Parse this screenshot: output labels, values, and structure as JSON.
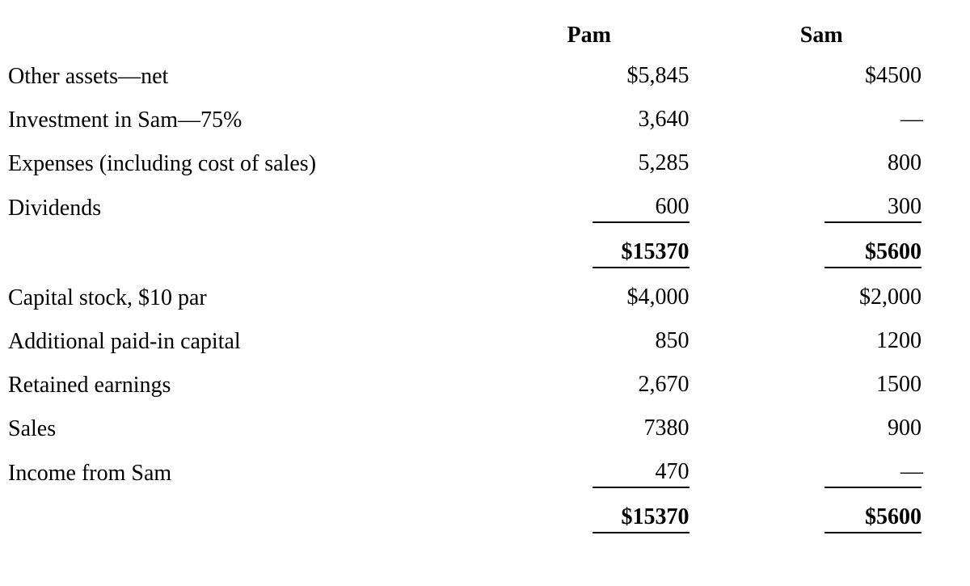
{
  "table": {
    "type": "table",
    "background_color": "#ffffff",
    "text_color": "#000000",
    "font_family": "Times New Roman",
    "font_size_pt": 21,
    "columns": [
      {
        "label": "",
        "align": "left"
      },
      {
        "label": "Pam",
        "align": "right"
      },
      {
        "label": "Sam",
        "align": "right"
      }
    ],
    "dash_glyph": "—",
    "section1": {
      "rows": [
        {
          "label": "Other assets—net",
          "pam": "$5,845",
          "sam": "$4500"
        },
        {
          "label": "Investment in Sam—75%",
          "pam": "3,640",
          "sam": "—"
        },
        {
          "label": "Expenses (including cost of sales)",
          "pam": "5,285",
          "sam": "800"
        },
        {
          "label": "Dividends",
          "pam": "600",
          "sam": "300",
          "underline": true
        }
      ],
      "total": {
        "pam": "$15370",
        "sam": "$5600",
        "bold": true,
        "underline": true
      }
    },
    "section2": {
      "rows": [
        {
          "label": "Capital stock, $10 par",
          "pam": "$4,000",
          "sam": "$2,000"
        },
        {
          "label": "Additional paid-in capital",
          "pam": "850",
          "sam": "1200"
        },
        {
          "label": "Retained earnings",
          "pam": "2,670",
          "sam": "1500"
        },
        {
          "label": "Sales",
          "pam": "7380",
          "sam": "900"
        },
        {
          "label": "Income from Sam",
          "pam": "470",
          "sam": "—",
          "underline": true
        }
      ],
      "total": {
        "pam": "$15370",
        "sam": "$5600",
        "bold": true,
        "underline": true
      }
    }
  }
}
